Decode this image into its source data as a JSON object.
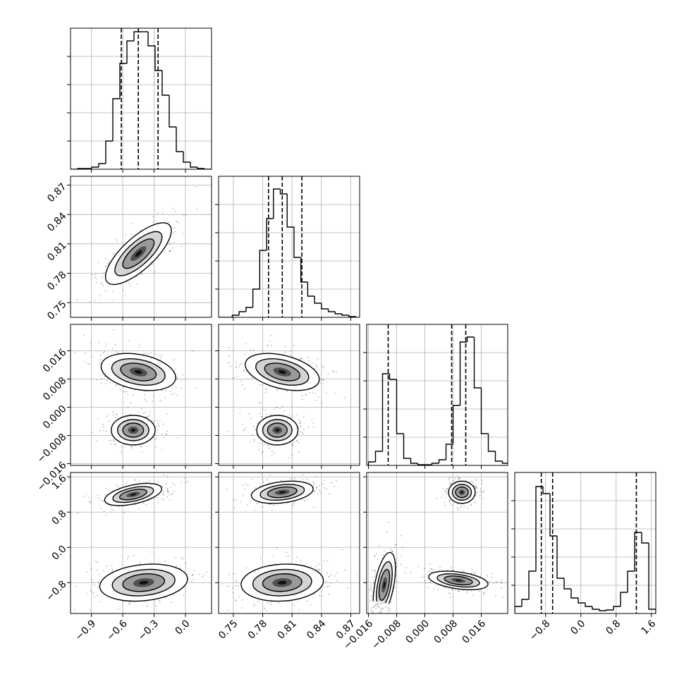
{
  "chart_data": {
    "type": "corner",
    "grid": true,
    "color": "#000000",
    "hist_ylim": [
      0,
      200
    ],
    "hist_yticks": [
      40,
      80,
      120,
      160
    ],
    "params": [
      {
        "lim": [
          -1.1,
          0.25
        ],
        "ticks": [
          {
            "value": -0.9,
            "label": "−0.9"
          },
          {
            "value": -0.6,
            "label": "−0.6"
          },
          {
            "value": -0.3,
            "label": "−0.3"
          },
          {
            "value": 0,
            "label": "0.0"
          }
        ],
        "quantiles": [
          -0.614,
          -0.451,
          -0.262
        ],
        "hist": {
          "bins": [
            -1.1,
            -1.0325,
            -0.965,
            -0.8975,
            -0.83,
            -0.7625,
            -0.695,
            -0.6275,
            -0.56,
            -0.4925,
            -0.425,
            -0.3575,
            -0.29,
            -0.2225,
            -0.155,
            -0.0875,
            -0.02,
            0.0475,
            0.115,
            0.1825,
            0.25
          ],
          "counts": [
            0,
            1,
            1,
            3,
            8,
            40,
            100,
            150,
            182,
            195,
            195,
            175,
            140,
            105,
            60,
            25,
            10,
            3,
            1,
            0
          ]
        }
      },
      {
        "lim": [
          0.735,
          0.879
        ],
        "ticks": [
          0.75,
          0.78,
          0.81,
          0.84,
          0.87
        ],
        "quantiles": [
          0.786,
          0.8,
          0.82
        ],
        "hist": {
          "bins": [
            0.735,
            0.742,
            0.749,
            0.756,
            0.763,
            0.77,
            0.777,
            0.784,
            0.791,
            0.798,
            0.805,
            0.812,
            0.819,
            0.826,
            0.833,
            0.84,
            0.847,
            0.854,
            0.861,
            0.868,
            0.875
          ],
          "counts": [
            0,
            0,
            3,
            8,
            14,
            40,
            95,
            140,
            182,
            175,
            128,
            85,
            50,
            30,
            20,
            12,
            8,
            5,
            3,
            1
          ]
        }
      },
      {
        "lim": [
          -0.0165,
          0.0235
        ],
        "ticks": [
          {
            "value": -0.016,
            "label": "−0.016"
          },
          {
            "value": -0.008,
            "label": "−0.008"
          },
          {
            "value": 0,
            "label": "0.000"
          },
          0.008,
          0.016
        ],
        "quantiles": [
          -0.0104,
          0.0076,
          0.0116
        ],
        "hist": {
          "bins": [
            -0.016,
            -0.014,
            -0.012,
            -0.01,
            -0.008,
            -0.006,
            -0.004,
            -0.002,
            0,
            0.002,
            0.004,
            0.006,
            0.008,
            0.01,
            0.012,
            0.014,
            0.016,
            0.018,
            0.02,
            0.022,
            0.024
          ],
          "counts": [
            5,
            20,
            130,
            122,
            45,
            10,
            3,
            1,
            1,
            3,
            8,
            30,
            85,
            175,
            182,
            110,
            45,
            20,
            6,
            3
          ]
        }
      },
      {
        "lim": [
          -1.5,
          1.7
        ],
        "ticks": [
          {
            "value": -0.8,
            "label": "−0.8"
          },
          {
            "value": 0,
            "label": "0.0"
          },
          0.8,
          1.6
        ],
        "quantiles": [
          -0.898,
          -0.641,
          1.259
        ],
        "hist": {
          "bins": [
            -1.5,
            -1.34,
            -1.18,
            -1.02,
            -0.86,
            -0.7,
            -0.54,
            -0.38,
            -0.22,
            -0.06,
            0.1,
            0.26,
            0.42,
            0.58,
            0.74,
            0.9,
            1.06,
            1.22,
            1.38,
            1.54,
            1.7
          ],
          "counts": [
            10,
            20,
            60,
            180,
            170,
            110,
            50,
            35,
            22,
            15,
            10,
            6,
            4,
            5,
            10,
            30,
            60,
            115,
            100,
            6
          ]
        }
      }
    ],
    "pairs": [
      {
        "x": 0,
        "y": 1,
        "modes": [
          {
            "cx": -0.45,
            "cy": 0.8,
            "sx": 0.15,
            "sy": 0.015,
            "rho": 0.75
          }
        ]
      },
      {
        "x": 0,
        "y": 2,
        "modes": [
          {
            "cx": -0.45,
            "cy": 0.01,
            "sx": 0.17,
            "sy": 0.0025,
            "rho": -0.3
          },
          {
            "cx": -0.5,
            "cy": -0.0065,
            "sx": 0.1,
            "sy": 0.002,
            "rho": 0
          }
        ]
      },
      {
        "x": 1,
        "y": 2,
        "modes": [
          {
            "cx": 0.8,
            "cy": 0.01,
            "sx": 0.018,
            "sy": 0.0025,
            "rho": -0.4
          },
          {
            "cx": 0.795,
            "cy": -0.0065,
            "sx": 0.01,
            "sy": 0.002,
            "rho": 0
          }
        ]
      },
      {
        "x": 0,
        "y": 3,
        "modes": [
          {
            "cx": -0.5,
            "cy": 1.2,
            "sx": 0.13,
            "sy": 0.12,
            "rho": 0.5
          },
          {
            "cx": -0.4,
            "cy": -0.8,
            "sx": 0.2,
            "sy": 0.2,
            "rho": 0.2
          }
        ]
      },
      {
        "x": 1,
        "y": 3,
        "modes": [
          {
            "cx": 0.8,
            "cy": 1.25,
            "sx": 0.015,
            "sy": 0.12,
            "rho": 0.3
          },
          {
            "cx": 0.8,
            "cy": -0.8,
            "sx": 0.02,
            "sy": 0.2,
            "rho": 0.1
          }
        ]
      },
      {
        "x": 2,
        "y": 3,
        "modes": [
          {
            "cx": 0.0105,
            "cy": 1.25,
            "sx": 0.0018,
            "sy": 0.12,
            "rho": 0
          },
          {
            "cx": -0.0115,
            "cy": -0.85,
            "sx": 0.0015,
            "sy": 0.35,
            "rho": 0.5
          },
          {
            "cx": 0.0095,
            "cy": -0.75,
            "sx": 0.004,
            "sy": 0.1,
            "rho": -0.4
          }
        ]
      }
    ]
  }
}
